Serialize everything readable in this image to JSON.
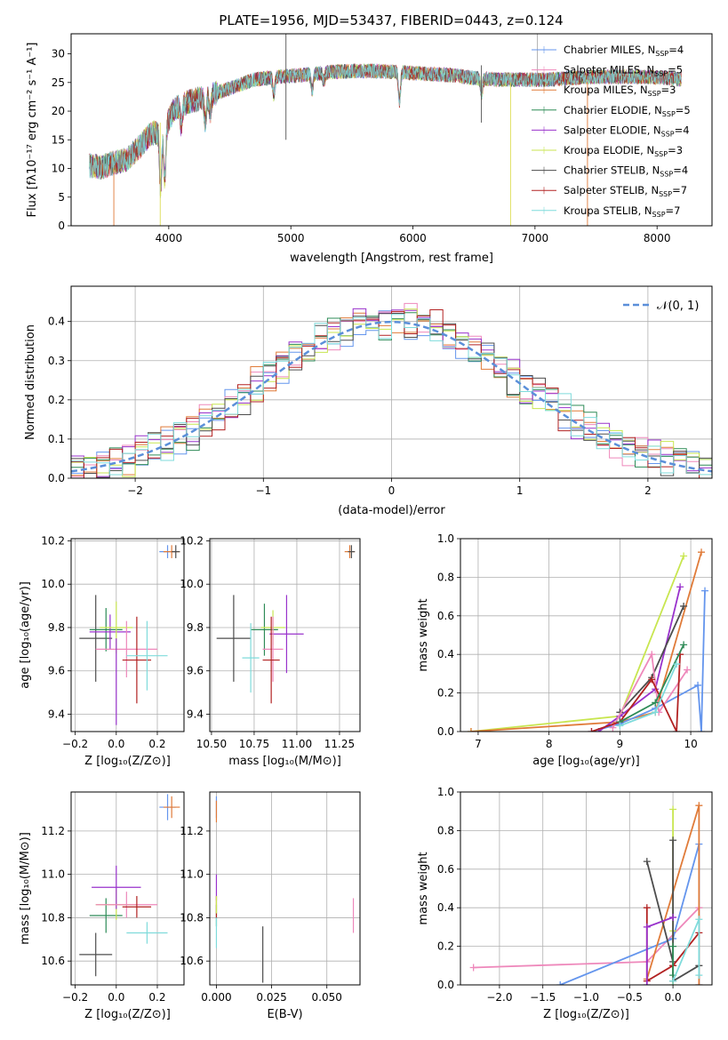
{
  "figure": {
    "title": "PLATE=1956, MJD=53437, FIBERID=0443, z=0.124"
  },
  "chart_data": [
    {
      "panel": "spectrum",
      "type": "line",
      "title": "PLATE=1956, MJD=53437, FIBERID=0443, z=0.124",
      "xlabel": "wavelength [Angstrom, rest frame]",
      "ylabel": "Flux [fλ10⁻¹⁷ erg cm⁻² s⁻¹ A⁻¹]",
      "xlim": [
        3200,
        8450
      ],
      "ylim": [
        0,
        33.5
      ],
      "xticks": [
        4000,
        5000,
        6000,
        7000,
        8000
      ],
      "yticks": [
        0,
        5,
        10,
        15,
        20,
        25,
        30
      ],
      "grid": false,
      "legend_position": "upper-right",
      "continuum": {
        "wavelength": [
          3350,
          3450,
          3550,
          3650,
          3750,
          3850,
          3950,
          4050,
          4150,
          4300,
          4500,
          4700,
          4900,
          5100,
          5300,
          5500,
          5700,
          5900,
          6100,
          6300,
          6500,
          6700,
          6900,
          7100,
          7300,
          7500,
          7700,
          7900,
          8100,
          8200
        ],
        "flux": [
          10.5,
          10.2,
          11.0,
          11.5,
          13.5,
          16.0,
          16.5,
          20.5,
          21.5,
          22.5,
          24.0,
          25.5,
          26.0,
          26.3,
          26.8,
          27.0,
          27.0,
          26.8,
          26.5,
          26.3,
          25.8,
          25.5,
          25.5,
          25.5,
          25.8,
          26.0,
          26.0,
          26.0,
          25.8,
          25.5
        ]
      },
      "absorption_features": [
        {
          "wavelength": 3933,
          "depth": 10.0
        },
        {
          "wavelength": 3968,
          "depth": 9.0
        },
        {
          "wavelength": 4102,
          "depth": 3.5
        },
        {
          "wavelength": 4300,
          "depth": 4.5
        },
        {
          "wavelength": 4340,
          "depth": 3.0
        },
        {
          "wavelength": 4861,
          "depth": 3.0
        },
        {
          "wavelength": 5175,
          "depth": 3.0
        },
        {
          "wavelength": 5270,
          "depth": 1.5
        },
        {
          "wavelength": 5890,
          "depth": 5.0
        },
        {
          "wavelength": 6563,
          "depth": 2.5
        }
      ],
      "spikes": [
        {
          "wavelength": 4960,
          "min": 15.0,
          "max": 33.5,
          "color": "#555555"
        },
        {
          "wavelength": 6560,
          "min": 18.0,
          "max": 28.0,
          "color": "#555555"
        },
        {
          "wavelength": 7020,
          "min": 26.0,
          "max": 33.5,
          "color": "#aaaaaa"
        },
        {
          "wavelength": 3930,
          "min": 0.0,
          "max": 18.0,
          "color": "#dddd55"
        },
        {
          "wavelength": 6800,
          "min": 0.0,
          "max": 25.0,
          "color": "#dddd55"
        },
        {
          "wavelength": 3550,
          "min": 0.0,
          "max": 10.0,
          "color": "#e07b39"
        },
        {
          "wavelength": 7430,
          "min": 0.0,
          "max": 25.0,
          "color": "#e07b39"
        }
      ],
      "series": [
        {
          "name": "Chabrier MILES, N",
          "sub": "SSP",
          "suffix": "=4",
          "color": "#6495ed"
        },
        {
          "name": "Salpeter MILES, N",
          "sub": "SSP",
          "suffix": "=5",
          "color": "#ee88bb"
        },
        {
          "name": "Kroupa MILES, N",
          "sub": "SSP",
          "suffix": "=3",
          "color": "#e07b39"
        },
        {
          "name": "Chabrier ELODIE, N",
          "sub": "SSP",
          "suffix": "=5",
          "color": "#2e8b57"
        },
        {
          "name": "Salpeter ELODIE, N",
          "sub": "SSP",
          "suffix": "=4",
          "color": "#9932cc"
        },
        {
          "name": "Kroupa ELODIE, N",
          "sub": "SSP",
          "suffix": "=3",
          "color": "#c8e650"
        },
        {
          "name": "Chabrier STELIB, N",
          "sub": "SSP",
          "suffix": "=4",
          "color": "#4d4d4d"
        },
        {
          "name": "Salpeter STELIB, N",
          "sub": "SSP",
          "suffix": "=7",
          "color": "#b22222"
        },
        {
          "name": "Kroupa STELIB, N",
          "sub": "SSP",
          "suffix": "=7",
          "color": "#7fdbdb"
        }
      ]
    },
    {
      "panel": "residuals",
      "type": "histogram",
      "xlabel": "(data-model)/error",
      "ylabel": "Normed distribution",
      "xlim": [
        -2.5,
        2.5
      ],
      "ylim": [
        0,
        0.49
      ],
      "xticks": [
        -2,
        -1,
        0,
        1,
        2
      ],
      "xtick_labels": [
        "−2",
        "−1",
        "0",
        "1",
        "2"
      ],
      "yticks": [
        0.0,
        0.1,
        0.2,
        0.3,
        0.4
      ],
      "ytick_labels": [
        "0.0",
        "0.1",
        "0.2",
        "0.3",
        "0.4"
      ],
      "grid": true,
      "legend_position": "upper-right",
      "reference_curve": {
        "name": "𝒩(0, 1)",
        "type": "gaussian",
        "mean": 0,
        "sigma": 1,
        "color": "#5b8fd9"
      },
      "bin_width": 0.1,
      "noise": [
        0.01,
        -0.02,
        0.035,
        -0.015,
        0.025,
        -0.03,
        0.015,
        0.04,
        -0.01,
        -0.035,
        0.02,
        0.03
      ]
    },
    {
      "panel": "Z-age",
      "type": "errorbar",
      "xlabel": "Z [log₁₀(Z/Z⊙)]",
      "ylabel": "age  [log₁₀(age/yr)]",
      "xlim": [
        -0.22,
        0.33
      ],
      "ylim": [
        9.32,
        10.21
      ],
      "xticks": [
        -0.2,
        0.0,
        0.2
      ],
      "xtick_labels": [
        "−0.2",
        "0.0",
        "0.2"
      ],
      "yticks": [
        9.4,
        9.6,
        9.8,
        10.0,
        10.2
      ],
      "ytick_labels": [
        "9.4",
        "9.6",
        "9.8",
        "10.0",
        "10.2"
      ],
      "grid": true,
      "points": [
        {
          "x": -0.1,
          "y": 9.75,
          "xerr": 0.08,
          "yerr": 0.2,
          "color": "#4d4d4d"
        },
        {
          "x": -0.05,
          "y": 9.79,
          "xerr": 0.08,
          "yerr": 0.1,
          "color": "#2e8b57"
        },
        {
          "x": -0.03,
          "y": 9.78,
          "xerr": 0.1,
          "yerr": 0.08,
          "color": "#9932cc"
        },
        {
          "x": 0.0,
          "y": 9.8,
          "xerr": 0.08,
          "yerr": 0.12,
          "color": "#c8e650"
        },
        {
          "x": 0.05,
          "y": 9.7,
          "xerr": 0.15,
          "yerr": 0.13,
          "color": "#ee88bb"
        },
        {
          "x": 0.0,
          "y": 9.55,
          "xerr": 0.0,
          "yerr": 0.2,
          "color": "#9932cc"
        },
        {
          "x": 0.1,
          "y": 9.65,
          "xerr": 0.07,
          "yerr": 0.2,
          "color": "#b22222"
        },
        {
          "x": 0.15,
          "y": 9.67,
          "xerr": 0.1,
          "yerr": 0.16,
          "color": "#7fdbdb"
        },
        {
          "x": 0.25,
          "y": 10.15,
          "xerr": 0.04,
          "yerr": 0.03,
          "color": "#6495ed"
        },
        {
          "x": 0.27,
          "y": 10.15,
          "xerr": 0.04,
          "yerr": 0.03,
          "color": "#e07b39"
        },
        {
          "x": 0.29,
          "y": 10.15,
          "xerr": 0.02,
          "yerr": 0.03,
          "color": "#4d4d4d"
        }
      ]
    },
    {
      "panel": "mass-age",
      "type": "errorbar",
      "xlabel": "mass [log₁₀(M/M⊙)]",
      "ylabel": "",
      "xlim": [
        10.49,
        11.37
      ],
      "ylim": [
        9.32,
        10.21
      ],
      "xticks": [
        10.5,
        10.75,
        11.0,
        11.25
      ],
      "xtick_labels": [
        "10.50",
        "10.75",
        "11.00",
        "11.25"
      ],
      "yticks": [
        9.4,
        9.6,
        9.8,
        10.0,
        10.2
      ],
      "ytick_labels": [
        "9.4",
        "9.6",
        "9.8",
        "10.0",
        "10.2"
      ],
      "grid": true,
      "points": [
        {
          "x": 10.63,
          "y": 9.75,
          "xerr": 0.1,
          "yerr": 0.2,
          "color": "#4d4d4d"
        },
        {
          "x": 10.81,
          "y": 9.79,
          "xerr": 0.08,
          "yerr": 0.12,
          "color": "#2e8b57"
        },
        {
          "x": 10.86,
          "y": 9.8,
          "xerr": 0.07,
          "yerr": 0.08,
          "color": "#c8e650"
        },
        {
          "x": 10.94,
          "y": 9.77,
          "xerr": 0.1,
          "yerr": 0.18,
          "color": "#9932cc"
        },
        {
          "x": 10.86,
          "y": 9.7,
          "xerr": 0.06,
          "yerr": 0.15,
          "color": "#ee88bb"
        },
        {
          "x": 10.85,
          "y": 9.65,
          "xerr": 0.05,
          "yerr": 0.2,
          "color": "#b22222"
        },
        {
          "x": 10.73,
          "y": 9.66,
          "xerr": 0.05,
          "yerr": 0.16,
          "color": "#7fdbdb"
        },
        {
          "x": 11.31,
          "y": 10.15,
          "xerr": 0.03,
          "yerr": 0.03,
          "color": "#e07b39"
        },
        {
          "x": 11.32,
          "y": 10.15,
          "xerr": 0.02,
          "yerr": 0.03,
          "color": "#4d4d4d"
        }
      ]
    },
    {
      "panel": "age-massweight",
      "type": "line",
      "xlabel": "age  [log₁₀(age/yr)]",
      "ylabel": "mass weight",
      "xlim": [
        6.75,
        10.3
      ],
      "ylim": [
        0,
        1.0
      ],
      "xticks": [
        7,
        8,
        9,
        10
      ],
      "xtick_labels": [
        "7",
        "8",
        "9",
        "10"
      ],
      "yticks": [
        0.0,
        0.2,
        0.4,
        0.6,
        0.8,
        1.0
      ],
      "ytick_labels": [
        "0.0",
        "0.2",
        "0.4",
        "0.6",
        "0.8",
        "1.0"
      ],
      "grid": true,
      "series": [
        {
          "color": "#c8e650",
          "x": [
            6.9,
            9.0,
            9.9
          ],
          "y": [
            0.0,
            0.08,
            0.91
          ]
        },
        {
          "color": "#e07b39",
          "x": [
            6.9,
            9.0,
            9.5,
            10.15
          ],
          "y": [
            0.0,
            0.05,
            0.1,
            0.93
          ]
        },
        {
          "color": "#6495ed",
          "x": [
            8.6,
            9.0,
            9.5,
            10.1,
            10.15,
            10.2
          ],
          "y": [
            0.0,
            0.04,
            0.12,
            0.24,
            0.0,
            0.73
          ]
        },
        {
          "color": "#9932cc",
          "x": [
            8.7,
            9.0,
            9.5,
            9.85
          ],
          "y": [
            0.0,
            0.08,
            0.22,
            0.75
          ]
        },
        {
          "color": "#4d4d4d",
          "x": [
            9.0,
            9.45,
            9.9
          ],
          "y": [
            0.1,
            0.28,
            0.65
          ]
        },
        {
          "color": "#ee88bb",
          "x": [
            8.9,
            9.45,
            9.55,
            9.95
          ],
          "y": [
            0.02,
            0.4,
            0.1,
            0.32
          ]
        },
        {
          "color": "#b22222",
          "x": [
            8.6,
            9.0,
            9.45,
            9.8,
            9.85
          ],
          "y": [
            0.0,
            0.05,
            0.27,
            0.0,
            0.4
          ]
        },
        {
          "color": "#2e8b57",
          "x": [
            9.0,
            9.5,
            9.9
          ],
          "y": [
            0.05,
            0.15,
            0.45
          ]
        },
        {
          "color": "#7fdbdb",
          "x": [
            9.0,
            9.5,
            9.8
          ],
          "y": [
            0.03,
            0.1,
            0.35
          ]
        }
      ]
    },
    {
      "panel": "Z-mass",
      "type": "errorbar",
      "xlabel": "Z [log₁₀(Z/Z⊙)]",
      "ylabel": "mass [log₁₀(M/M⊙)]",
      "xlim": [
        -0.22,
        0.33
      ],
      "ylim": [
        10.49,
        11.38
      ],
      "xticks": [
        -0.2,
        0.0,
        0.2
      ],
      "xtick_labels": [
        "−0.2",
        "0.0",
        "0.2"
      ],
      "yticks": [
        10.6,
        10.8,
        11.0,
        11.2
      ],
      "ytick_labels": [
        "10.6",
        "10.8",
        "11.0",
        "11.2"
      ],
      "grid": true,
      "points": [
        {
          "x": -0.1,
          "y": 10.63,
          "xerr": 0.08,
          "yerr": 0.1,
          "color": "#4d4d4d"
        },
        {
          "x": -0.05,
          "y": 10.81,
          "xerr": 0.08,
          "yerr": 0.08,
          "color": "#2e8b57"
        },
        {
          "x": 0.0,
          "y": 10.86,
          "xerr": 0.1,
          "yerr": 0.07,
          "color": "#c8e650"
        },
        {
          "x": 0.0,
          "y": 10.94,
          "xerr": 0.12,
          "yerr": 0.1,
          "color": "#9932cc"
        },
        {
          "x": 0.05,
          "y": 10.86,
          "xerr": 0.15,
          "yerr": 0.06,
          "color": "#ee88bb"
        },
        {
          "x": 0.1,
          "y": 10.85,
          "xerr": 0.07,
          "yerr": 0.05,
          "color": "#b22222"
        },
        {
          "x": 0.15,
          "y": 10.73,
          "xerr": 0.1,
          "yerr": 0.05,
          "color": "#7fdbdb"
        },
        {
          "x": 0.25,
          "y": 11.31,
          "xerr": 0.04,
          "yerr": 0.06,
          "color": "#6495ed"
        },
        {
          "x": 0.27,
          "y": 11.31,
          "xerr": 0.04,
          "yerr": 0.05,
          "color": "#e07b39"
        }
      ]
    },
    {
      "panel": "EBV-mass",
      "type": "errorbar",
      "xlabel": "E(B-V)",
      "ylabel": "",
      "xlim": [
        -0.003,
        0.065
      ],
      "ylim": [
        10.49,
        11.38
      ],
      "xticks": [
        0.0,
        0.025,
        0.05
      ],
      "xtick_labels": [
        "0.000",
        "0.025",
        "0.050"
      ],
      "yticks": [
        10.6,
        10.8,
        11.0,
        11.2
      ],
      "ytick_labels": [
        "10.6",
        "10.8",
        "11.0",
        "11.2"
      ],
      "grid": true,
      "points": [
        {
          "x": 0.0,
          "y": 11.31,
          "xerr": 0.0,
          "yerr": 0.05,
          "color": "#6495ed"
        },
        {
          "x": 0.0,
          "y": 11.29,
          "xerr": 0.0,
          "yerr": 0.05,
          "color": "#e07b39"
        },
        {
          "x": 0.0,
          "y": 10.94,
          "xerr": 0.0,
          "yerr": 0.06,
          "color": "#9932cc"
        },
        {
          "x": 0.0,
          "y": 10.81,
          "xerr": 0.0,
          "yerr": 0.05,
          "color": "#2e8b57"
        },
        {
          "x": 0.0,
          "y": 10.85,
          "xerr": 0.0,
          "yerr": 0.05,
          "color": "#b22222"
        },
        {
          "x": 0.0,
          "y": 10.86,
          "xerr": 0.0,
          "yerr": 0.04,
          "color": "#c8e650"
        },
        {
          "x": 0.0,
          "y": 10.73,
          "xerr": 0.0,
          "yerr": 0.07,
          "color": "#7fdbdb"
        },
        {
          "x": 0.021,
          "y": 10.63,
          "xerr": 0.0,
          "yerr": 0.13,
          "color": "#4d4d4d"
        },
        {
          "x": 0.062,
          "y": 10.81,
          "xerr": 0.0,
          "yerr": 0.08,
          "color": "#ee88bb"
        }
      ]
    },
    {
      "panel": "Z-massweight",
      "type": "line",
      "xlabel": "Z [log₁₀(Z/Z⊙)]",
      "ylabel": "mass weight",
      "xlim": [
        -2.45,
        0.45
      ],
      "ylim": [
        0,
        1.0
      ],
      "xticks": [
        -2.0,
        -1.5,
        -1.0,
        -0.5,
        0.0
      ],
      "xtick_labels": [
        "−2.0",
        "−1.5",
        "−1.0",
        "−0.5",
        "0.0"
      ],
      "yticks": [
        0.0,
        0.2,
        0.4,
        0.6,
        0.8,
        1.0
      ],
      "ytick_labels": [
        "0.0",
        "0.2",
        "0.4",
        "0.6",
        "0.8",
        "1.0"
      ],
      "grid": true,
      "series": [
        {
          "color": "#ee88bb",
          "x": [
            -2.3,
            -0.3,
            0.3
          ],
          "y": [
            0.09,
            0.12,
            0.4
          ]
        },
        {
          "color": "#6495ed",
          "x": [
            -1.3,
            0.0,
            0.3,
            0.3
          ],
          "y": [
            0.0,
            0.24,
            0.73,
            0.0
          ]
        },
        {
          "color": "#c8e650",
          "x": [
            0.0,
            0.0,
            0.0
          ],
          "y": [
            0.0,
            0.28,
            0.91
          ]
        },
        {
          "color": "#e07b39",
          "x": [
            -0.3,
            0.3,
            0.3
          ],
          "y": [
            0.03,
            0.93,
            0.0
          ]
        },
        {
          "color": "#4d4d4d",
          "x": [
            -0.3,
            0.0,
            0.0,
            0.0,
            0.3
          ],
          "y": [
            0.64,
            0.12,
            0.75,
            0.02,
            0.1
          ]
        },
        {
          "color": "#b22222",
          "x": [
            -0.3,
            -0.3,
            0.0,
            0.3
          ],
          "y": [
            0.4,
            0.02,
            0.1,
            0.27
          ]
        },
        {
          "color": "#9932cc",
          "x": [
            -0.3,
            -0.3,
            0.0
          ],
          "y": [
            0.0,
            0.3,
            0.35
          ]
        },
        {
          "color": "#2e8b57",
          "x": [
            0.0,
            0.0
          ],
          "y": [
            0.05,
            0.2
          ]
        },
        {
          "color": "#7fdbdb",
          "x": [
            0.0,
            0.3,
            0.3
          ],
          "y": [
            0.02,
            0.34,
            0.05
          ]
        }
      ]
    }
  ]
}
